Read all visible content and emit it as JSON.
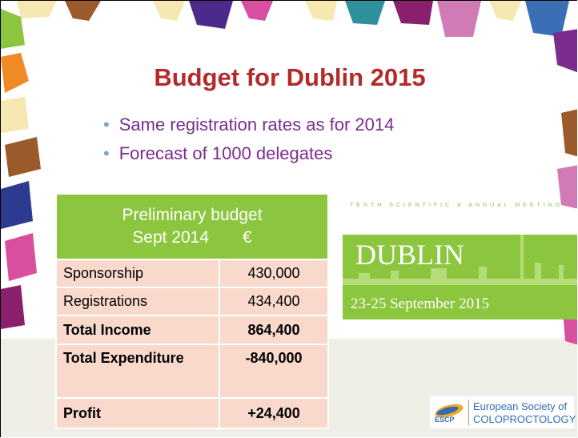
{
  "title": "Budget for Dublin 2015",
  "bullets": [
    "Same registration rates as for 2014",
    "Forecast of 1000 delegates"
  ],
  "table": {
    "header": [
      "Preliminary budget",
      "Sept 2014",
      "€"
    ],
    "rows": [
      [
        "Sponsorship",
        "430,000"
      ],
      [
        "Registrations",
        "434,400"
      ],
      [
        "Total Income",
        "864,400"
      ],
      [
        "Total Expenditure",
        "-840,000"
      ],
      [
        "Profit",
        "+24,400"
      ]
    ]
  },
  "event_logo": {
    "tagline": "TENTH SCIENTIFIC & ANNUAL MEETING",
    "city": "DUBLIN",
    "dates": "23-25 September 2015"
  },
  "society_logo": {
    "abbr": "ESCP",
    "line1": "European Society of",
    "line2": "COLOPROCTOLOGY"
  }
}
